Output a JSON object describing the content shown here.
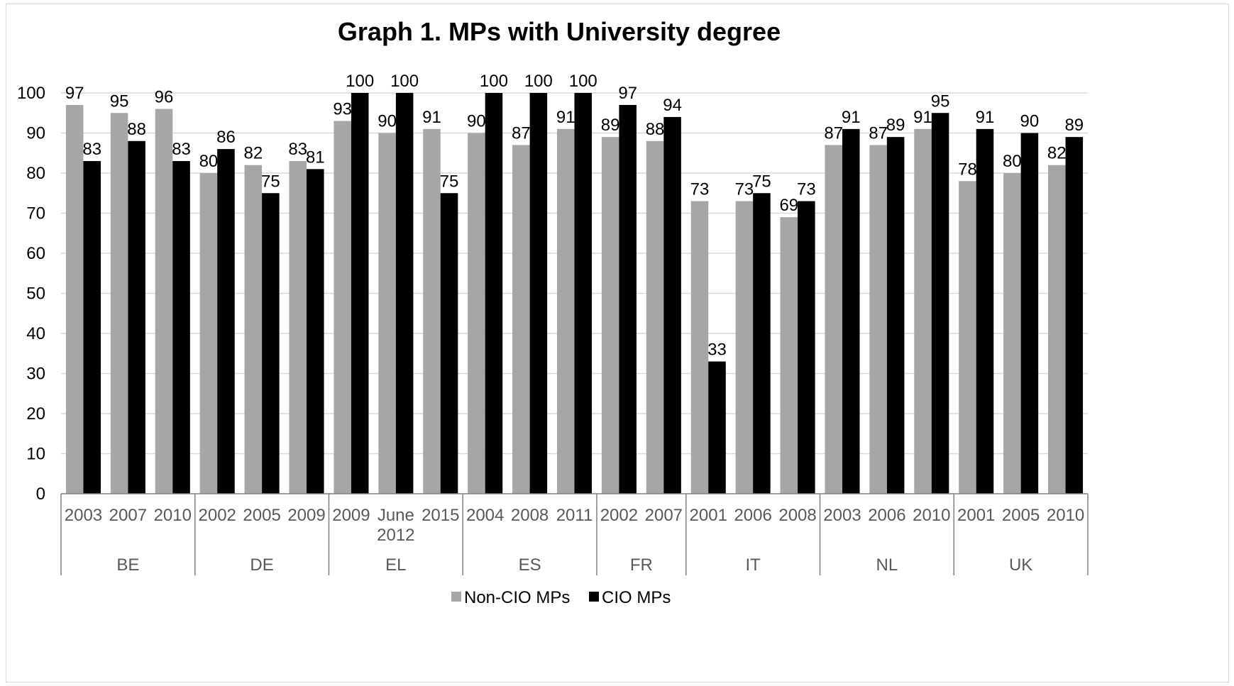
{
  "colors": {
    "non_cio": "#a6a6a6",
    "cio": "#000000",
    "grid": "#d9d9d9",
    "axis": "#808080"
  },
  "chart_data": {
    "type": "bar",
    "title": "Graph 1. MPs with University degree",
    "xlabel": "",
    "ylabel": "",
    "ylim": [
      0,
      100
    ],
    "yticks": [
      "0",
      "10",
      "20",
      "30",
      "40",
      "50",
      "60",
      "70",
      "80",
      "90",
      "100"
    ],
    "grid": true,
    "legend_position": "bottom",
    "groups": [
      {
        "name": "BE",
        "categories": [
          "2003",
          "2007",
          "2010"
        ]
      },
      {
        "name": "DE",
        "categories": [
          "2002",
          "2005",
          "2009"
        ]
      },
      {
        "name": "EL",
        "categories": [
          "2009",
          "June 2012",
          "2015"
        ]
      },
      {
        "name": "ES",
        "categories": [
          "2004",
          "2008",
          "2011"
        ]
      },
      {
        "name": "FR",
        "categories": [
          "2002",
          "2007"
        ]
      },
      {
        "name": "IT",
        "categories": [
          "2001",
          "2006",
          "2008"
        ]
      },
      {
        "name": "NL",
        "categories": [
          "2003",
          "2006",
          "2010"
        ]
      },
      {
        "name": "UK",
        "categories": [
          "2001",
          "2005",
          "2010"
        ]
      }
    ],
    "series": [
      {
        "name": "Non-CIO MPs",
        "values": [
          97,
          95,
          96,
          80,
          82,
          83,
          93,
          90,
          91,
          90,
          87,
          91,
          89,
          88,
          73,
          73,
          69,
          87,
          87,
          91,
          78,
          80,
          82
        ]
      },
      {
        "name": "CIO MPs",
        "values": [
          83,
          88,
          83,
          86,
          75,
          81,
          100,
          100,
          75,
          100,
          100,
          100,
          97,
          94,
          33,
          75,
          73,
          91,
          89,
          95,
          91,
          90,
          89
        ]
      }
    ]
  }
}
